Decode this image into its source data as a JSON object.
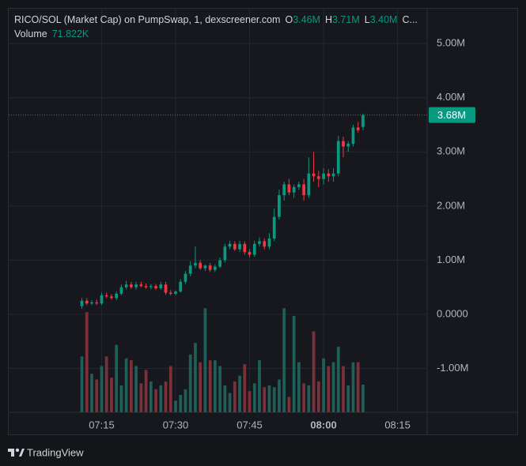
{
  "chart_data": {
    "type": "candlestick",
    "title": "RICO/SOL (Market Cap) on PumpSwap, 1, dexscreener.com",
    "legend": {
      "open_key": "O",
      "open": "3.46M",
      "high_key": "H",
      "high": "3.71M",
      "low_key": "L",
      "low": "3.40M",
      "close_key": "C..."
    },
    "volume_title": "Volume",
    "volume_last": "71.822K",
    "last_price_label": "3.68M",
    "x": [
      "07:11",
      "07:12",
      "07:13",
      "07:14",
      "07:15",
      "07:16",
      "07:17",
      "07:18",
      "07:19",
      "07:20",
      "07:21",
      "07:22",
      "07:23",
      "07:24",
      "07:25",
      "07:26",
      "07:27",
      "07:28",
      "07:29",
      "07:30",
      "07:31",
      "07:32",
      "07:33",
      "07:34",
      "07:35",
      "07:36",
      "07:37",
      "07:38",
      "07:39",
      "07:40",
      "07:41",
      "07:42",
      "07:43",
      "07:44",
      "07:45",
      "07:46",
      "07:47",
      "07:48",
      "07:49",
      "07:50",
      "07:51",
      "07:52",
      "07:53",
      "07:54",
      "07:55",
      "07:56",
      "07:57",
      "07:58",
      "07:59",
      "08:00",
      "08:01",
      "08:02",
      "08:03",
      "08:04",
      "08:05",
      "08:06",
      "08:07",
      "08:08"
    ],
    "open": [
      0.15,
      0.25,
      0.2,
      0.22,
      0.2,
      0.35,
      0.33,
      0.3,
      0.38,
      0.5,
      0.55,
      0.5,
      0.55,
      0.52,
      0.5,
      0.52,
      0.48,
      0.55,
      0.4,
      0.38,
      0.42,
      0.6,
      0.75,
      0.9,
      0.95,
      0.85,
      0.9,
      0.82,
      0.88,
      1.0,
      1.25,
      1.3,
      1.2,
      1.3,
      1.15,
      1.1,
      1.3,
      1.35,
      1.25,
      1.4,
      1.8,
      2.2,
      2.4,
      2.25,
      2.35,
      2.4,
      2.2,
      2.6,
      2.55,
      2.5,
      2.6,
      2.55,
      2.6,
      3.2,
      3.1,
      3.15,
      3.45,
      3.46
    ],
    "high": [
      0.3,
      0.3,
      0.26,
      0.27,
      0.4,
      0.4,
      0.37,
      0.42,
      0.55,
      0.62,
      0.6,
      0.6,
      0.6,
      0.57,
      0.56,
      0.56,
      0.6,
      0.6,
      0.45,
      0.44,
      0.65,
      0.8,
      0.98,
      1.25,
      1.0,
      0.92,
      0.95,
      0.92,
      1.05,
      1.3,
      1.36,
      1.35,
      1.36,
      1.35,
      1.2,
      1.36,
      1.42,
      1.4,
      1.5,
      1.95,
      2.3,
      2.45,
      2.5,
      2.4,
      2.45,
      2.5,
      2.9,
      3.0,
      2.65,
      2.7,
      2.68,
      2.7,
      3.3,
      3.28,
      3.2,
      3.5,
      3.55,
      3.71
    ],
    "low": [
      0.1,
      0.17,
      0.17,
      0.17,
      0.17,
      0.3,
      0.27,
      0.26,
      0.35,
      0.46,
      0.47,
      0.46,
      0.5,
      0.47,
      0.46,
      0.45,
      0.45,
      0.36,
      0.35,
      0.35,
      0.4,
      0.56,
      0.7,
      0.85,
      0.82,
      0.8,
      0.78,
      0.78,
      0.85,
      0.96,
      1.2,
      1.17,
      1.15,
      1.1,
      1.05,
      1.06,
      1.25,
      1.2,
      1.2,
      1.35,
      1.75,
      2.1,
      2.2,
      2.15,
      2.3,
      2.1,
      2.15,
      2.45,
      2.35,
      2.4,
      2.45,
      2.45,
      2.55,
      2.9,
      3.0,
      3.1,
      3.35,
      3.4
    ],
    "close": [
      0.25,
      0.2,
      0.22,
      0.2,
      0.35,
      0.33,
      0.3,
      0.38,
      0.5,
      0.55,
      0.5,
      0.55,
      0.52,
      0.5,
      0.52,
      0.48,
      0.55,
      0.4,
      0.38,
      0.42,
      0.6,
      0.75,
      0.9,
      0.95,
      0.85,
      0.9,
      0.82,
      0.88,
      1.0,
      1.25,
      1.3,
      1.2,
      1.3,
      1.15,
      1.1,
      1.3,
      1.35,
      1.25,
      1.4,
      1.8,
      2.2,
      2.4,
      2.25,
      2.35,
      2.4,
      2.2,
      2.6,
      2.55,
      2.5,
      2.6,
      2.55,
      2.6,
      3.2,
      3.1,
      3.15,
      3.45,
      3.4,
      3.68
    ],
    "volume": [
      145,
      260,
      100,
      85,
      120,
      145,
      90,
      175,
      70,
      140,
      135,
      120,
      75,
      110,
      80,
      60,
      70,
      80,
      120,
      30,
      45,
      60,
      150,
      180,
      130,
      270,
      135,
      135,
      120,
      70,
      50,
      80,
      95,
      125,
      55,
      75,
      135,
      65,
      70,
      65,
      85,
      270,
      40,
      250,
      130,
      75,
      70,
      210,
      80,
      140,
      120,
      130,
      170,
      120,
      70,
      130,
      130,
      71.822
    ],
    "up_color": "#089981",
    "down_color": "#f23645",
    "volume_up_color": "#1f5f58",
    "volume_down_color": "#7d2f3a",
    "ylim": [
      -1.81,
      5.63
    ],
    "yticks": [
      {
        "value": 5,
        "label": "5.00M"
      },
      {
        "value": 4,
        "label": "4.00M"
      },
      {
        "value": 3,
        "label": "3.00M"
      },
      {
        "value": 2,
        "label": "2.00M"
      },
      {
        "value": 1,
        "label": "1.00M"
      },
      {
        "value": 0,
        "label": "0.0000"
      },
      {
        "value": -1,
        "label": "-1.00M"
      }
    ],
    "volume_ylim": [
      0,
      287
    ],
    "xlim": [
      "06:56",
      "08:21"
    ],
    "xticks": [
      "07:15",
      "07:30",
      "07:45",
      "08:00",
      "08:15"
    ],
    "xtick_bold": [
      false,
      false,
      false,
      true,
      false
    ],
    "grid": true
  },
  "footer": {
    "brand": "TradingView"
  }
}
